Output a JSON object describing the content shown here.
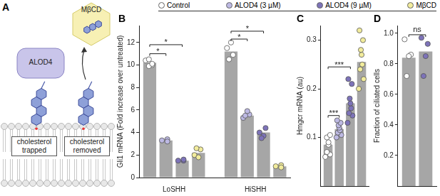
{
  "diagram": {
    "panel": "A",
    "protein": "ALOD4",
    "compound": "MβCD",
    "left_label": "cholesterol trapped",
    "right_label": "cholesterol removed"
  },
  "chart_data": [
    {
      "type": "bar",
      "title": "B",
      "y_label": "Gli1 mRNA (Fold increase over untreated)",
      "categories": [
        "LoSHH",
        "HiSHH"
      ],
      "color": "#a6a6a6",
      "legend": "top",
      "grid": false,
      "ylim": [
        0,
        13.5
      ],
      "yticks": [
        0,
        2,
        4,
        6,
        8,
        10,
        12
      ],
      "series": [
        {
          "name": "Control",
          "color": "#ffffff",
          "values": [
            10.2,
            11.2
          ],
          "points": [
            [
              10.4,
              10.0,
              9.9,
              10.5,
              10.1
            ],
            [
              11.5,
              10.9,
              12.0,
              10.5
            ]
          ]
        },
        {
          "name": "ALOD4 (3 µM)",
          "color": "#bdb9e3",
          "values": [
            3.3,
            5.5
          ],
          "points": [
            [
              3.3,
              3.4,
              3.2
            ],
            [
              5.3,
              5.6,
              5.9,
              5.5
            ]
          ]
        },
        {
          "name": "ALOD4 (9 µM)",
          "color": "#7d73b9",
          "values": [
            1.5,
            4.0
          ],
          "points": [
            [
              1.5,
              1.5,
              1.6
            ],
            [
              4.0,
              4.4,
              3.7,
              3.5
            ]
          ]
        },
        {
          "name": "MβCD",
          "color": "#f2ec9c",
          "values": [
            2.2,
            1.0
          ],
          "points": [
            [
              2.0,
              2.5,
              1.8,
              2.6
            ],
            [
              1.0,
              1.1,
              0.9
            ]
          ]
        }
      ],
      "annotations": [
        {
          "text": "*",
          "category": "LoSHH",
          "from": "Control",
          "to": "ALOD4 (3 µM)",
          "y": 11.0
        },
        {
          "text": "*",
          "category": "LoSHH",
          "from": "Control",
          "to": "ALOD4 (9 µM)",
          "y": 11.8
        },
        {
          "text": "*",
          "category": "HiSHH",
          "from": "Control",
          "to": "ALOD4 (3 µM)",
          "y": 12.3
        },
        {
          "text": "*",
          "category": "HiSHH",
          "from": "Control",
          "to": "ALOD4 (9 µM)",
          "y": 13.0
        }
      ]
    },
    {
      "type": "bar",
      "title": "C",
      "y_label": "Hmgcr mRNA (au)",
      "categories": [
        null
      ],
      "color": "#a6a6a6",
      "grid": false,
      "tick_labels": "y",
      "ylim": [
        0,
        0.33
      ],
      "yticks": [
        0.1,
        0.2,
        0.3
      ],
      "series": [
        {
          "name": "Control",
          "color": "#ffffff",
          "values": [
            0.085
          ],
          "points": [
            [
              0.06,
              0.065,
              0.07,
              0.085,
              0.09,
              0.1,
              0.105
            ]
          ]
        },
        {
          "name": "ALOD4 (3 µM)",
          "color": "#bdb9e3",
          "values": [
            0.117
          ],
          "points": [
            [
              0.1,
              0.105,
              0.11,
              0.115,
              0.12,
              0.125,
              0.13,
              0.135
            ]
          ]
        },
        {
          "name": "ALOD4 (9 µM)",
          "color": "#7d73b9",
          "values": [
            0.17
          ],
          "points": [
            [
              0.13,
              0.145,
              0.15,
              0.16,
              0.17,
              0.18,
              0.21,
              0.22
            ]
          ]
        },
        {
          "name": "MβCD",
          "color": "#f2ec9c",
          "values": [
            0.255
          ],
          "points": [
            [
              0.2,
              0.22,
              0.24,
              0.25,
              0.27,
              0.28,
              0.3,
              0.32
            ]
          ]
        }
      ],
      "annotations": [
        {
          "text": "***",
          "from": "Control",
          "to": "ALOD4 (3 µM)",
          "y": 0.145
        },
        {
          "text": "***",
          "from": "Control",
          "to": "ALOD4 (9 µM)",
          "y": 0.245
        }
      ]
    },
    {
      "type": "bar",
      "title": "D",
      "y_label": "Fraction of ciliated cells",
      "categories": [
        null
      ],
      "color": "#a6a6a6",
      "grid": false,
      "tick_labels": "y",
      "ylim": [
        0,
        1.05
      ],
      "yticks": [
        0.2,
        0.4,
        0.6,
        0.8,
        {
          "value": 1,
          "label": "1.0"
        }
      ],
      "series": [
        {
          "name": "Control",
          "color": "#ffffff",
          "values": [
            0.84
          ],
          "points": [
            [
              0.96,
              0.86,
              0.85,
              0.72
            ]
          ]
        },
        {
          "name": "ALOD4 (9 µM)",
          "color": "#7d73b9",
          "values": [
            0.88
          ],
          "points": [
            [
              0.97,
              0.93,
              0.85,
              0.72
            ]
          ]
        }
      ],
      "annotations": [
        {
          "text": "ns",
          "from": "Control",
          "to": "ALOD4 (9 µM)",
          "y": 0.99
        }
      ]
    }
  ]
}
